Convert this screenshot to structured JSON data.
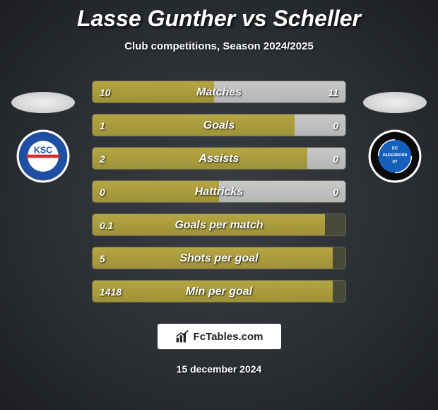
{
  "title": "Lasse Gunther vs Scheller",
  "subtitle": "Club competitions, Season 2024/2025",
  "date": "15 december 2024",
  "footer_brand": "FcTables.com",
  "colors": {
    "left_bar": "#a79a3c",
    "right_bar": "#c0c0c0",
    "bar_bg": "#4a4a3a",
    "text": "#ffffff"
  },
  "club_left": {
    "name": "KSC",
    "bg": "#ffffff",
    "primary": "#1f4fa3",
    "accent": "#d32f2f"
  },
  "club_right": {
    "name": "SC PADERBORN 07",
    "bg": "#ffffff",
    "primary": "#0a0a0a",
    "accent": "#1560bd"
  },
  "stats": [
    {
      "label": "Matches",
      "left_val": "10",
      "right_val": "11",
      "left_pct": 48,
      "right_pct": 52
    },
    {
      "label": "Goals",
      "left_val": "1",
      "right_val": "0",
      "left_pct": 80,
      "right_pct": 20
    },
    {
      "label": "Assists",
      "left_val": "2",
      "right_val": "0",
      "left_pct": 85,
      "right_pct": 15
    },
    {
      "label": "Hattricks",
      "left_val": "0",
      "right_val": "0",
      "left_pct": 50,
      "right_pct": 50
    },
    {
      "label": "Goals per match",
      "left_val": "0.1",
      "right_val": "",
      "left_pct": 92,
      "right_pct": 0
    },
    {
      "label": "Shots per goal",
      "left_val": "5",
      "right_val": "",
      "left_pct": 95,
      "right_pct": 0
    },
    {
      "label": "Min per goal",
      "left_val": "1418",
      "right_val": "",
      "left_pct": 95,
      "right_pct": 0
    }
  ]
}
